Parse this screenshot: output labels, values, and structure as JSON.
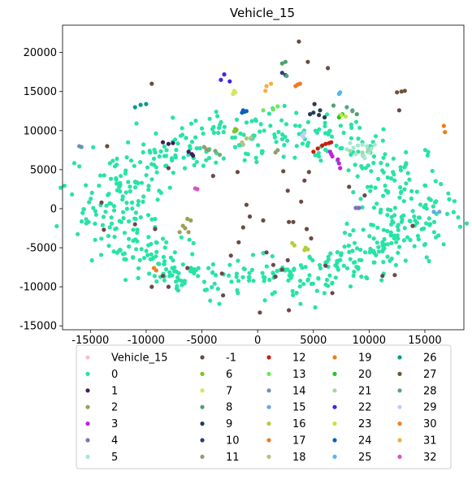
{
  "chart_data": {
    "type": "scatter",
    "title": "Vehicle_15",
    "xlabel": "",
    "ylabel": "",
    "xlim": [
      -17500,
      18500
    ],
    "ylim": [
      -15500,
      23500
    ],
    "xticks": [
      -15000,
      -10000,
      -5000,
      0,
      5000,
      10000,
      15000
    ],
    "yticks": [
      -15000,
      -10000,
      -5000,
      0,
      5000,
      10000,
      15000,
      20000
    ],
    "grid": false,
    "legend_position": "below",
    "legend": [
      {
        "label": "Vehicle_15",
        "color": "#f4c2cc"
      },
      {
        "label": "0",
        "color": "#27e3a6"
      },
      {
        "label": "1",
        "color": "#3d1f5c"
      },
      {
        "label": "2",
        "color": "#9aa055"
      },
      {
        "label": "3",
        "color": "#c020e0"
      },
      {
        "label": "4",
        "color": "#7a72c2"
      },
      {
        "label": "5",
        "color": "#a6e8cf"
      },
      {
        "label": "-1",
        "color": "#6b4a44"
      },
      {
        "label": "6",
        "color": "#7fc51e"
      },
      {
        "label": "7",
        "color": "#d2e85a"
      },
      {
        "label": "8",
        "color": "#4f9f6f"
      },
      {
        "label": "9",
        "color": "#233b58"
      },
      {
        "label": "10",
        "color": "#2f3c7c"
      },
      {
        "label": "11",
        "color": "#8c9f72"
      },
      {
        "label": "12",
        "color": "#c81e0e"
      },
      {
        "label": "13",
        "color": "#6de85a"
      },
      {
        "label": "14",
        "color": "#6b93b3"
      },
      {
        "label": "15",
        "color": "#6aa6e6"
      },
      {
        "label": "16",
        "color": "#b3cf3a"
      },
      {
        "label": "17",
        "color": "#ef7a2a"
      },
      {
        "label": "18",
        "color": "#b5c27f"
      },
      {
        "label": "19",
        "color": "#f07c12"
      },
      {
        "label": "20",
        "color": "#22c81e"
      },
      {
        "label": "21",
        "color": "#a9d6a9"
      },
      {
        "label": "22",
        "color": "#4a20e6"
      },
      {
        "label": "23",
        "color": "#bde83a"
      },
      {
        "label": "24",
        "color": "#0a5fc0"
      },
      {
        "label": "25",
        "color": "#52b8ea"
      },
      {
        "label": "26",
        "color": "#0e9a8a"
      },
      {
        "label": "27",
        "color": "#6d5338"
      },
      {
        "label": "28",
        "color": "#56a67e"
      },
      {
        "label": "29",
        "color": "#bcd0f2"
      },
      {
        "label": "30",
        "color": "#f08020"
      },
      {
        "label": "31",
        "color": "#f2b040"
      },
      {
        "label": "32",
        "color": "#d455c4"
      }
    ],
    "main_cluster": {
      "label": "0",
      "color": "#27e3a6",
      "shape": "ring",
      "center": [
        500,
        0
      ],
      "radius_x": 13500,
      "radius_y": 9500,
      "count": 700
    },
    "series": [
      {
        "name": "-1",
        "color": "#6b4a44",
        "points": [
          [
            3700,
            21400
          ],
          [
            -9500,
            16000
          ],
          [
            4500,
            18800
          ],
          [
            6300,
            18000
          ],
          [
            12700,
            12600
          ],
          [
            -13500,
            8000
          ],
          [
            -14000,
            800
          ],
          [
            -8000,
            5200
          ],
          [
            -4000,
            4200
          ],
          [
            -1800,
            4700
          ],
          [
            2300,
            4800
          ],
          [
            4600,
            4700
          ],
          [
            2700,
            2300
          ],
          [
            4200,
            3600
          ],
          [
            -1000,
            500
          ],
          [
            3900,
            900
          ],
          [
            500,
            -1500
          ],
          [
            2800,
            -1700
          ],
          [
            3200,
            -1700
          ],
          [
            -700,
            -1000
          ],
          [
            -1300,
            -2400
          ],
          [
            4400,
            -2600
          ],
          [
            -1700,
            -4300
          ],
          [
            -9200,
            -2600
          ],
          [
            -13800,
            -2700
          ],
          [
            -11000,
            -2000
          ],
          [
            -2400,
            -6000
          ],
          [
            -3200,
            -8300
          ],
          [
            1400,
            -7200
          ],
          [
            800,
            -5600
          ],
          [
            2700,
            -6600
          ],
          [
            1600,
            -8700
          ],
          [
            -8500,
            -8600
          ],
          [
            -6300,
            -7600
          ],
          [
            -9500,
            -10000
          ],
          [
            -8000,
            -10000
          ],
          [
            6100,
            -7300
          ],
          [
            11200,
            -8600
          ],
          [
            12300,
            -8500
          ],
          [
            6700,
            -10800
          ],
          [
            2800,
            -13000
          ],
          [
            200,
            -13300
          ],
          [
            -3100,
            -11100
          ],
          [
            2200,
            -7800
          ],
          [
            4800,
            -3800
          ],
          [
            9600,
            1700
          ],
          [
            8200,
            2800
          ],
          [
            13900,
            -2200
          ]
        ]
      },
      {
        "name": "1",
        "color": "#3d1f5c",
        "points": [
          [
            -8500,
            8500
          ],
          [
            -8000,
            8300
          ],
          [
            -7600,
            8400
          ],
          [
            -6200,
            7300
          ],
          [
            -5900,
            7000
          ],
          [
            -5800,
            6800
          ]
        ]
      },
      {
        "name": "2",
        "color": "#9aa055",
        "points": [
          [
            -6300,
            -1300
          ],
          [
            -6000,
            -1500
          ],
          [
            -6700,
            -2200
          ],
          [
            -6500,
            -2500
          ],
          [
            -7000,
            -3000
          ],
          [
            -6200,
            -3000
          ]
        ]
      },
      {
        "name": "3",
        "color": "#c020e0",
        "points": [
          [
            6500,
            7300
          ],
          [
            6600,
            7000
          ],
          [
            6700,
            6700
          ],
          [
            7200,
            6300
          ],
          [
            7300,
            5800
          ],
          [
            7400,
            5200
          ]
        ]
      },
      {
        "name": "4",
        "color": "#7a72c2",
        "points": [
          [
            8800,
            100
          ],
          [
            9000,
            100
          ],
          [
            9100,
            100
          ]
        ]
      },
      {
        "name": "5",
        "color": "#a6e8cf",
        "points": [
          [
            8000,
            7600
          ],
          [
            8600,
            7800
          ],
          [
            9000,
            8100
          ],
          [
            9400,
            8200
          ],
          [
            9800,
            8000
          ],
          [
            10200,
            7700
          ],
          [
            10000,
            7200
          ],
          [
            9400,
            6900
          ],
          [
            8800,
            7000
          ],
          [
            9600,
            6500
          ],
          [
            8300,
            8400
          ],
          [
            10500,
            8200
          ]
        ]
      },
      {
        "name": "6",
        "color": "#7fc51e",
        "points": [
          [
            -2100,
            9900
          ],
          [
            -2000,
            10200
          ],
          [
            -1900,
            10100
          ]
        ]
      },
      {
        "name": "7",
        "color": "#d2e85a",
        "points": [
          [
            -2200,
            14700
          ],
          [
            -2100,
            15100
          ],
          [
            -2000,
            14900
          ]
        ]
      },
      {
        "name": "8",
        "color": "#4f9f6f",
        "points": [
          [
            2200,
            18600
          ],
          [
            2500,
            18800
          ],
          [
            6800,
            13200
          ],
          [
            8500,
            12500
          ],
          [
            8900,
            12100
          ]
        ]
      },
      {
        "name": "9",
        "color": "#233b58",
        "points": [
          [
            5100,
            13400
          ],
          [
            5600,
            12600
          ],
          [
            5000,
            12300
          ],
          [
            4700,
            12100
          ],
          [
            5500,
            12000
          ],
          [
            6000,
            11700
          ]
        ]
      },
      {
        "name": "10",
        "color": "#2f3c7c",
        "points": [
          [
            2200,
            17400
          ],
          [
            2500,
            17100
          ]
        ]
      },
      {
        "name": "11",
        "color": "#8c9f72",
        "points": [
          [
            -4800,
            7900
          ],
          [
            -4600,
            7600
          ],
          [
            -4400,
            7500
          ],
          [
            -3800,
            7400
          ],
          [
            -3400,
            6900
          ],
          [
            1600,
            7200
          ],
          [
            1800,
            7500
          ]
        ]
      },
      {
        "name": "12",
        "color": "#c81e0e",
        "points": [
          [
            5000,
            7300
          ],
          [
            5400,
            7700
          ],
          [
            5800,
            8100
          ],
          [
            6100,
            8300
          ],
          [
            6400,
            8400
          ],
          [
            6600,
            8500
          ]
        ]
      },
      {
        "name": "13",
        "color": "#6de85a",
        "points": [
          [
            500,
            12600
          ],
          [
            1400,
            12700
          ],
          [
            1800,
            13100
          ]
        ]
      },
      {
        "name": "14",
        "color": "#6b93b3",
        "points": [
          [
            -16000,
            8000
          ],
          [
            -15800,
            7900
          ]
        ]
      },
      {
        "name": "15",
        "color": "#6aa6e6",
        "points": [
          [
            15800,
            -400
          ],
          [
            16300,
            -400
          ]
        ]
      },
      {
        "name": "16",
        "color": "#b3cf3a",
        "points": [
          [
            3100,
            -4400
          ],
          [
            3300,
            -4700
          ],
          [
            4200,
            -5300
          ],
          [
            4300,
            -5000
          ],
          [
            4500,
            -5200
          ]
        ]
      },
      {
        "name": "17",
        "color": "#ef7a2a",
        "points": [
          [
            3400,
            15700
          ],
          [
            3600,
            15900
          ],
          [
            3800,
            16000
          ]
        ]
      },
      {
        "name": "18",
        "color": "#b5c27f",
        "points": [
          [
            -1400,
            8500
          ],
          [
            -1000,
            9000
          ],
          [
            -600,
            9100
          ],
          [
            -1300,
            8200
          ]
        ]
      },
      {
        "name": "19",
        "color": "#f07c12",
        "points": [
          [
            16700,
            10600
          ],
          [
            16800,
            9800
          ]
        ]
      },
      {
        "name": "20",
        "color": "#22c81e",
        "points": [
          [
            7400,
            11900
          ],
          [
            7600,
            12100
          ],
          [
            7300,
            11700
          ]
        ]
      },
      {
        "name": "21",
        "color": "#a9d6a9",
        "points": [
          [
            8300,
            7400
          ],
          [
            9400,
            7200
          ],
          [
            9900,
            7500
          ]
        ]
      },
      {
        "name": "22",
        "color": "#4a20e6",
        "points": [
          [
            -3300,
            16500
          ],
          [
            -3000,
            17200
          ],
          [
            -2500,
            16300
          ]
        ]
      },
      {
        "name": "23",
        "color": "#bde83a",
        "points": [
          [
            7500,
            12000
          ],
          [
            7900,
            11800
          ]
        ]
      },
      {
        "name": "24",
        "color": "#0a5fc0",
        "points": [
          [
            -1300,
            12600
          ],
          [
            -1200,
            12400
          ],
          [
            -1000,
            12500
          ],
          [
            -1400,
            12300
          ]
        ]
      },
      {
        "name": "25",
        "color": "#52b8ea",
        "points": [
          [
            7300,
            14700
          ],
          [
            7400,
            14900
          ]
        ]
      },
      {
        "name": "26",
        "color": "#0e9a8a",
        "points": [
          [
            -11000,
            13000
          ],
          [
            -10500,
            13300
          ],
          [
            -10000,
            13400
          ]
        ]
      },
      {
        "name": "27",
        "color": "#6d5338",
        "points": [
          [
            12500,
            14900
          ],
          [
            12900,
            15000
          ],
          [
            13200,
            15100
          ]
        ]
      },
      {
        "name": "28",
        "color": "#56a67e",
        "points": [
          [
            8000,
            13000
          ],
          [
            8500,
            12600
          ],
          [
            2600,
            17000
          ]
        ]
      },
      {
        "name": "29",
        "color": "#bcd0f2",
        "points": [
          [
            4000,
            9400
          ],
          [
            4200,
            9700
          ],
          [
            4100,
            9200
          ]
        ]
      },
      {
        "name": "30",
        "color": "#f08020",
        "points": [
          [
            -9300,
            -7600
          ],
          [
            -9100,
            -7900
          ]
        ]
      },
      {
        "name": "31",
        "color": "#f2b040",
        "points": [
          [
            800,
            15700
          ],
          [
            1200,
            16000
          ],
          [
            700,
            15100
          ]
        ]
      },
      {
        "name": "32",
        "color": "#d455c4",
        "points": [
          [
            -5600,
            2600
          ],
          [
            -5400,
            2500
          ]
        ]
      }
    ]
  }
}
